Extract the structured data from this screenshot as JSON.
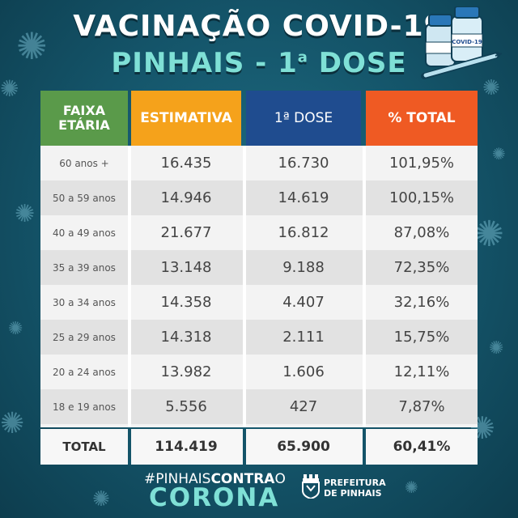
{
  "header": {
    "title_line1": "VACINAÇÃO COVID-19",
    "title_line2": "PINHAIS - 1",
    "title_line2_sup": "a",
    "title_line2_suffix": " DOSE"
  },
  "vial_label": "COVID-19",
  "table": {
    "columns": [
      {
        "label_line1": "FAIXA",
        "label_line2": "ETÁRIA",
        "color": "#5a9a4a"
      },
      {
        "label": "ESTIMATIVA",
        "color": "#f5a21b"
      },
      {
        "label": "1ª DOSE",
        "color": "#1f4c8f"
      },
      {
        "label": "% TOTAL",
        "color": "#ef5a23"
      }
    ],
    "rows": [
      {
        "age": "60 anos +",
        "estimate": "16.435",
        "dose1": "16.730",
        "percent": "101,95%"
      },
      {
        "age": "50 a 59 anos",
        "estimate": "14.946",
        "dose1": "14.619",
        "percent": "100,15%"
      },
      {
        "age": "40 a 49 anos",
        "estimate": "21.677",
        "dose1": "16.812",
        "percent": "87,08%"
      },
      {
        "age": "35 a 39 anos",
        "estimate": "13.148",
        "dose1": "9.188",
        "percent": "72,35%"
      },
      {
        "age": "30 a 34 anos",
        "estimate": "14.358",
        "dose1": "4.407",
        "percent": "32,16%"
      },
      {
        "age": "25 a 29 anos",
        "estimate": "14.318",
        "dose1": "2.111",
        "percent": "15,75%"
      },
      {
        "age": "20 a 24 anos",
        "estimate": "13.982",
        "dose1": "1.606",
        "percent": "12,11%"
      },
      {
        "age": "18 e 19 anos",
        "estimate": "5.556",
        "dose1": "427",
        "percent": "7,87%"
      }
    ],
    "total": {
      "label": "TOTAL",
      "estimate": "114.419",
      "dose1": "65.900",
      "percent": "60,41%"
    }
  },
  "footer": {
    "hashtag_prefix": "#PINHAIS",
    "hashtag_bold": "CONTRA",
    "hashtag_suffix": "O",
    "hashtag_line2": "CORONA",
    "prefeitura_line1": "PREFEITURA",
    "prefeitura_line2": "DE PINHAIS"
  }
}
